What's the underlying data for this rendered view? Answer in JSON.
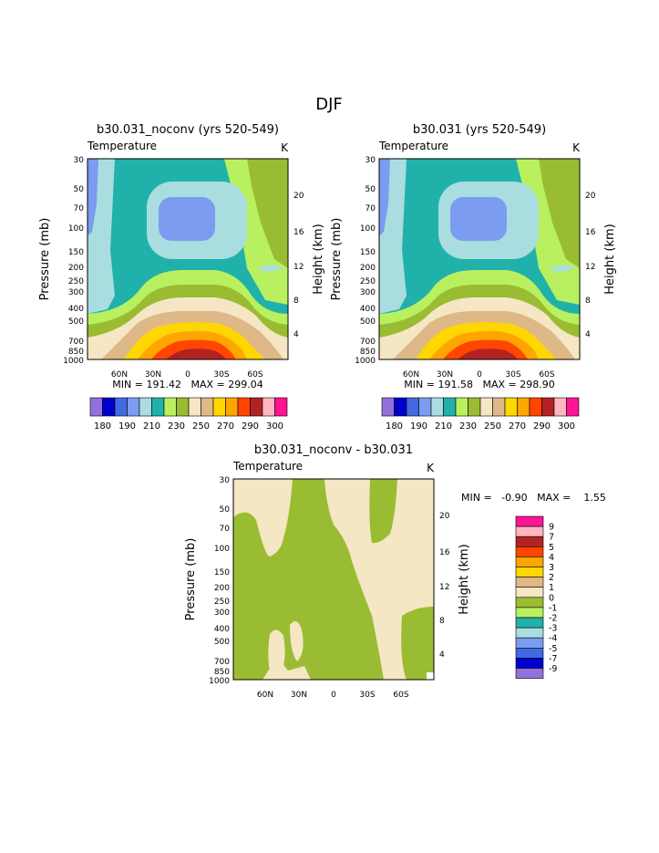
{
  "page_title": "DJF",
  "chart_data": [
    {
      "type": "heatmap",
      "id": "p1",
      "title": "b30.031_noconv (yrs 520-549)",
      "subtitle_left": "Temperature",
      "subtitle_right": "K",
      "ylabel": "Pressure (mb)",
      "y2label": "Height (km)",
      "pressure_ticks": [
        "30",
        "50",
        "70",
        "100",
        "150",
        "200",
        "250",
        "300",
        "400",
        "500",
        "700",
        "850",
        "1000"
      ],
      "height_ticks": [
        "4",
        "8",
        "12",
        "16",
        "20"
      ],
      "lat_ticks": [
        "60N",
        "30N",
        "0",
        "30S",
        "60S"
      ],
      "min_max": "MIN = 191.42   MAX = 299.04"
    },
    {
      "type": "heatmap",
      "id": "p2",
      "title": "b30.031 (yrs 520-549)",
      "subtitle_left": "Temperature",
      "subtitle_right": "K",
      "ylabel": "Pressure (mb)",
      "y2label": "Height (km)",
      "pressure_ticks": [
        "30",
        "50",
        "70",
        "100",
        "150",
        "200",
        "250",
        "300",
        "400",
        "500",
        "700",
        "850",
        "1000"
      ],
      "height_ticks": [
        "4",
        "8",
        "12",
        "16",
        "20"
      ],
      "lat_ticks": [
        "60N",
        "30N",
        "0",
        "30S",
        "60S"
      ],
      "min_max": "MIN = 191.58   MAX = 298.90"
    },
    {
      "type": "heatmap",
      "id": "p3",
      "title": "b30.031_noconv - b30.031",
      "subtitle_left": "Temperature",
      "subtitle_right": "K",
      "ylabel": "Pressure (mb)",
      "y2label": "Height (km)",
      "pressure_ticks": [
        "30",
        "50",
        "70",
        "100",
        "150",
        "200",
        "250",
        "300",
        "400",
        "500",
        "700",
        "850",
        "1000"
      ],
      "height_ticks": [
        "4",
        "8",
        "12",
        "16",
        "20"
      ],
      "lat_ticks": [
        "60N",
        "30N",
        "0",
        "30S",
        "60S"
      ],
      "min_max": "MIN =   -0.90   MAX =    1.55"
    }
  ],
  "colorbar_abs": {
    "labels": [
      "180",
      "190",
      "210",
      "230",
      "250",
      "270",
      "290",
      "300"
    ],
    "colors": [
      "#9370db",
      "#0000cd",
      "#4169e1",
      "#7b9cf0",
      "#a9dde0",
      "#20b2aa",
      "#b8f060",
      "#9abc32",
      "#f5e6c4",
      "#deb887",
      "#ffd700",
      "#ffa500",
      "#ff4500",
      "#b22222",
      "#ffb6c1",
      "#ff1493"
    ]
  },
  "colorbar_diff": {
    "labels": [
      "9",
      "7",
      "5",
      "4",
      "3",
      "2",
      "1",
      "0",
      "-1",
      "-2",
      "-3",
      "-4",
      "-5",
      "-7",
      "-9"
    ],
    "colors": [
      "#ff1493",
      "#ffb6c1",
      "#b22222",
      "#ff4500",
      "#ffa500",
      "#ffd700",
      "#deb887",
      "#f5e6c4",
      "#9abc32",
      "#b8f060",
      "#20b2aa",
      "#a9dde0",
      "#7b9cf0",
      "#4169e1",
      "#0000cd",
      "#9370db"
    ]
  }
}
